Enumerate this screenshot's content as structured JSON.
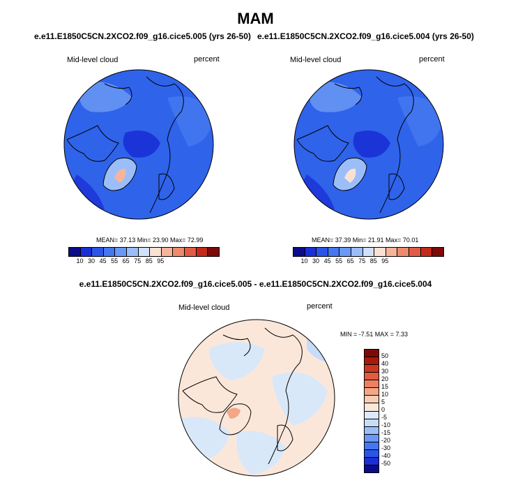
{
  "title": "MAM",
  "panels": [
    {
      "subtitle": "e.e11.E1850C5CN.2XCO2.f09_g16.cice5.005 (yrs 26-50)",
      "left_label": "Mid-level cloud",
      "right_label": "percent",
      "stats": "MEAN=  37.13  Min=  23.90  Max=  72.99"
    },
    {
      "subtitle": "e.e11.E1850C5CN.2XCO2.f09_g16.cice5.004 (yrs 26-50)",
      "left_label": "Mid-level cloud",
      "right_label": "percent",
      "stats": "MEAN=  37.39  Min=  21.91  Max=  70.01"
    }
  ],
  "diff": {
    "title": "e.e11.E1850C5CN.2XCO2.f09_g16.cice5.005 - e.e11.E1850C5CN.2XCO2.f09_g16.cice5.004",
    "left_label": "Mid-level cloud",
    "right_label": "percent",
    "stats": "MIN =  -7.51 MAX =   7.33"
  },
  "colors": {
    "abs_bar": [
      "#0c0c8a",
      "#1a2fd6",
      "#2b55e8",
      "#4477f0",
      "#6a98f5",
      "#9cbef8",
      "#cfe1fb",
      "#fbe1d3",
      "#f6b59a",
      "#ee8a6e",
      "#e25c45",
      "#c42a1c",
      "#7d0a08"
    ],
    "diff_bar": [
      "#0c0c8a",
      "#1a2fd6",
      "#2b55e8",
      "#4477f0",
      "#6a98f5",
      "#9cbef8",
      "#c6dcf8",
      "#dde9f8",
      "#fbe7da",
      "#f8cdb5",
      "#f4a685",
      "#ee8062",
      "#e35a3f",
      "#cc3720",
      "#a81a0c",
      "#7d0a08"
    ],
    "ocean_abs": "#2f63ea",
    "ocean_diff": "#d9e8f9"
  },
  "chart_data": [
    {
      "type": "heatmap",
      "projection": "north polar stereographic",
      "title": "e.e11.E1850C5CN.2XCO2.f09_g16.cice5.005 (yrs 26-50)",
      "variable": "Mid-level cloud",
      "units": "percent",
      "mean": 37.13,
      "min": 23.9,
      "max": 72.99,
      "colorbar_ticks": [
        10,
        30,
        45,
        55,
        65,
        75,
        85,
        95
      ]
    },
    {
      "type": "heatmap",
      "projection": "north polar stereographic",
      "title": "e.e11.E1850C5CN.2XCO2.f09_g16.cice5.004 (yrs 26-50)",
      "variable": "Mid-level cloud",
      "units": "percent",
      "mean": 37.39,
      "min": 21.91,
      "max": 70.01,
      "colorbar_ticks": [
        10,
        30,
        45,
        55,
        65,
        75,
        85,
        95
      ]
    },
    {
      "type": "heatmap",
      "projection": "north polar stereographic",
      "title": "e.e11.E1850C5CN.2XCO2.f09_g16.cice5.005 - e.e11.E1850C5CN.2XCO2.f09_g16.cice5.004",
      "variable": "Mid-level cloud",
      "units": "percent",
      "min": -7.51,
      "max": 7.33,
      "colorbar_ticks": [
        50,
        40,
        30,
        20,
        15,
        10,
        5,
        0,
        -5,
        -10,
        -15,
        -20,
        -30,
        -40,
        -50
      ]
    }
  ]
}
